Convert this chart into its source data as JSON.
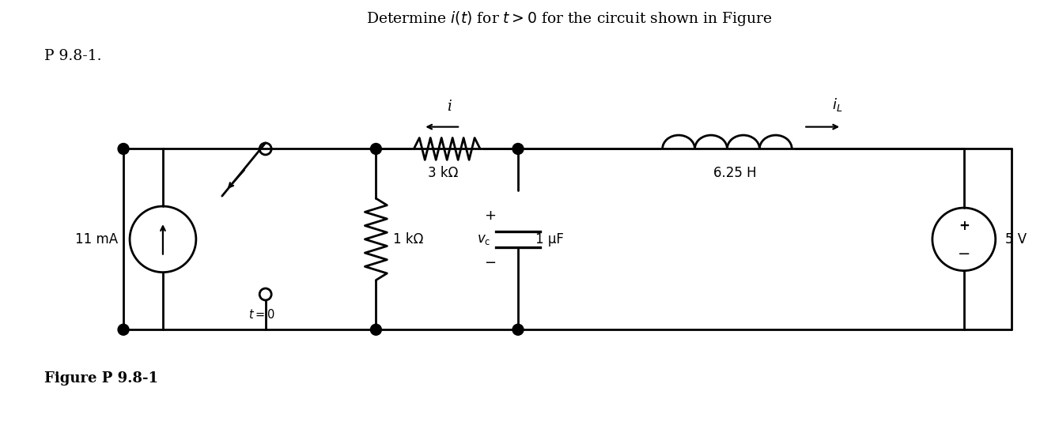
{
  "title_line1": "Determine $i(t)$ for $t > 0$ for the circuit shown in Figure",
  "title_line2": "P 9.8-1.",
  "figure_label": "Figure P 9.8-1",
  "bg_color": "#ffffff",
  "line_color": "#000000",
  "current_source_value": "11 mA",
  "switch_label": "$t = 0$",
  "r1_label": "3 kΩ",
  "r2_label": "1 kΩ",
  "vc_label": "$v_c$",
  "cap_label": "1 μF",
  "ind_label": "6.25 H",
  "volt_source_label": "5 V",
  "i_label": "i",
  "iL_label": "$i_L$",
  "plus_label": "+",
  "minus_label": "−"
}
